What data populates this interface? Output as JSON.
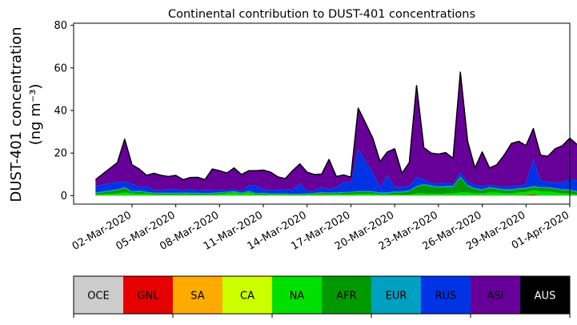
{
  "chart_data": {
    "type": "area",
    "title": "Continental contribution to DUST-401 concentrations",
    "ylabel_line1": "DUST-401 concentration",
    "ylabel_line2": "(ng m⁻³)",
    "xlabel": "",
    "ylim": [
      -4,
      81
    ],
    "xlim": [
      "2020-02-27",
      "2020-04-01"
    ],
    "yticks": [
      0,
      20,
      40,
      60,
      80
    ],
    "xticks": [
      "2020-03-02",
      "2020-03-05",
      "2020-03-08",
      "2020-03-11",
      "2020-03-14",
      "2020-03-17",
      "2020-03-20",
      "2020-03-23",
      "2020-03-26",
      "2020-03-29",
      "2020-04-01"
    ],
    "xtick_labels": [
      "02-Mar-2020",
      "05-Mar-2020",
      "08-Mar-2020",
      "11-Mar-2020",
      "14-Mar-2020",
      "17-Mar-2020",
      "20-Mar-2020",
      "23-Mar-2020",
      "26-Mar-2020",
      "29-Mar-2020",
      "01-Apr-2020"
    ],
    "x": [
      "2020-02-28 12:00",
      "2020-03-01 00:00",
      "2020-03-01 12:00",
      "2020-03-02 00:00",
      "2020-03-02 12:00",
      "2020-03-03 00:00",
      "2020-03-03 12:00",
      "2020-03-04 00:00",
      "2020-03-04 12:00",
      "2020-03-05 00:00",
      "2020-03-05 12:00",
      "2020-03-06 00:00",
      "2020-03-06 12:00",
      "2020-03-07 00:00",
      "2020-03-07 12:00",
      "2020-03-08 00:00",
      "2020-03-08 12:00",
      "2020-03-09 00:00",
      "2020-03-09 12:00",
      "2020-03-10 00:00",
      "2020-03-10 12:00",
      "2020-03-11 00:00",
      "2020-03-11 12:00",
      "2020-03-12 00:00",
      "2020-03-12 12:00",
      "2020-03-13 00:00",
      "2020-03-13 12:00",
      "2020-03-14 00:00",
      "2020-03-14 12:00",
      "2020-03-15 00:00",
      "2020-03-15 12:00",
      "2020-03-16 00:00",
      "2020-03-16 12:00",
      "2020-03-17 00:00",
      "2020-03-17 12:00",
      "2020-03-18 00:00",
      "2020-03-18 12:00",
      "2020-03-19 00:00",
      "2020-03-19 12:00",
      "2020-03-20 00:00",
      "2020-03-20 12:00",
      "2020-03-21 00:00",
      "2020-03-21 12:00",
      "2020-03-22 00:00",
      "2020-03-22 12:00",
      "2020-03-23 00:00",
      "2020-03-23 12:00",
      "2020-03-24 00:00",
      "2020-03-24 12:00",
      "2020-03-25 00:00",
      "2020-03-25 12:00",
      "2020-03-26 00:00",
      "2020-03-26 12:00",
      "2020-03-27 00:00",
      "2020-03-27 12:00",
      "2020-03-28 00:00",
      "2020-03-28 12:00",
      "2020-03-29 00:00",
      "2020-03-29 12:00",
      "2020-03-30 00:00",
      "2020-03-30 12:00",
      "2020-03-31 00:00",
      "2020-03-31 12:00",
      "2020-04-01 00:00",
      "2020-04-01 12:00"
    ],
    "series": [
      {
        "name": "OCE",
        "color": "#cccccc",
        "values": [
          0,
          0,
          0,
          0,
          0,
          0,
          0,
          0,
          0,
          0,
          0,
          0,
          0,
          0,
          0,
          0,
          0,
          0,
          0,
          0,
          0,
          0,
          0,
          0,
          0,
          0,
          0,
          0,
          0,
          0,
          0,
          0,
          0,
          0,
          0,
          0,
          0,
          0,
          0,
          0,
          0,
          0,
          0,
          0,
          0,
          0,
          0,
          0,
          0,
          0,
          0,
          0,
          0,
          0,
          0,
          0,
          0,
          0,
          0,
          0,
          0,
          0,
          0,
          0,
          0
        ]
      },
      {
        "name": "GNL",
        "color": "#e60000",
        "values": [
          0,
          0,
          0,
          0,
          0,
          0,
          0,
          0,
          0,
          0,
          0,
          0,
          0,
          0,
          0,
          0,
          0,
          0,
          0,
          0,
          0,
          0,
          0,
          0,
          0,
          0,
          0,
          0,
          0,
          0.3,
          0,
          0,
          0,
          0,
          0,
          0,
          0,
          0,
          0,
          0,
          0,
          0,
          0,
          0,
          0,
          0,
          0,
          0,
          0,
          0,
          0,
          0,
          0,
          0,
          0,
          0,
          0,
          0.2,
          0.5,
          0,
          0,
          0,
          0,
          0,
          0
        ]
      },
      {
        "name": "SA",
        "color": "#ffaa00",
        "values": [
          0,
          0,
          0,
          0,
          0,
          0,
          0,
          0,
          0,
          0,
          0,
          0,
          0,
          0,
          0,
          0,
          0,
          0,
          0,
          0,
          0,
          0,
          0,
          0,
          0,
          0,
          0,
          0,
          0,
          0,
          0,
          0,
          0,
          0,
          0,
          0,
          0,
          0,
          0,
          0,
          0,
          0,
          0,
          0,
          0,
          0,
          0,
          0,
          0,
          0,
          0,
          0,
          0,
          0,
          0,
          0,
          0,
          0,
          0,
          0,
          0,
          0,
          0,
          0,
          0
        ]
      },
      {
        "name": "CA",
        "color": "#ccff00",
        "values": [
          0,
          0,
          0,
          0,
          0,
          0,
          0,
          0,
          0,
          0,
          0,
          0,
          0,
          0,
          0,
          0,
          0,
          0,
          0,
          0,
          0,
          0,
          0,
          0,
          0,
          0,
          0,
          0,
          0,
          0,
          0,
          0,
          0,
          0,
          0,
          0,
          0,
          0,
          0,
          0,
          0,
          0,
          0,
          0,
          0,
          0,
          0,
          0,
          0,
          0,
          0,
          0,
          0,
          0,
          0,
          0,
          0,
          0,
          0,
          0,
          0,
          0,
          0,
          0,
          0
        ]
      },
      {
        "name": "NA",
        "color": "#00e000",
        "values": [
          0.5,
          1,
          1.5,
          1,
          0.8,
          1,
          0.6,
          0.5,
          0.5,
          0.5,
          0.6,
          0.5,
          0.5,
          0.4,
          0.5,
          0.8,
          1,
          1.5,
          0.8,
          1.5,
          0.5,
          0.5,
          0.4,
          0.4,
          0.4,
          0.3,
          0.3,
          0.4,
          0.5,
          0.5,
          0.6,
          0.6,
          0.7,
          0.7,
          0.8,
          0.8,
          0.9,
          0.5,
          0.5,
          0.5,
          0.5,
          0.5,
          1,
          1,
          0.8,
          0.8,
          1,
          1,
          1.5,
          1.5,
          1,
          1,
          1.5,
          1.5,
          1,
          1,
          1.5,
          1.5,
          2,
          2,
          2,
          1.5,
          1,
          1,
          0.5
        ]
      },
      {
        "name": "AFR",
        "color": "#009a00",
        "values": [
          0.5,
          1.5,
          2,
          0.5,
          1,
          0.5,
          0.5,
          0.5,
          0.5,
          0.5,
          0.5,
          0.5,
          0.5,
          0.5,
          0.5,
          0.5,
          0.5,
          0.3,
          0.3,
          0.4,
          0.4,
          0.5,
          0.4,
          0.4,
          0.3,
          0.3,
          0.3,
          0.4,
          0.5,
          0.5,
          0.6,
          0.6,
          0.7,
          0.8,
          1,
          1,
          0.8,
          0.5,
          0.5,
          1,
          1,
          1.5,
          3,
          4,
          3.5,
          3,
          3,
          3,
          7,
          3,
          2,
          1.5,
          2,
          1.5,
          1.5,
          1.5,
          1.5,
          1.5,
          1.5,
          1.5,
          1.5,
          1.5,
          1.5,
          1.5,
          1
        ]
      },
      {
        "name": "EUR",
        "color": "#00a0c0",
        "values": [
          0.5,
          0.5,
          0.5,
          0.5,
          0.5,
          0.3,
          0.3,
          0.3,
          0.3,
          0.3,
          0.3,
          0.3,
          0.3,
          0.3,
          0.3,
          0.3,
          0.3,
          0.3,
          0.3,
          0.3,
          0.3,
          0.3,
          0.3,
          0.3,
          0.3,
          0.3,
          0.3,
          0.3,
          0.3,
          0.3,
          0.3,
          0.3,
          0.3,
          0.3,
          0.3,
          0.3,
          0.3,
          0.5,
          0.5,
          0.5,
          0.5,
          0.5,
          0.5,
          0.5,
          0.5,
          0.5,
          0.5,
          0.5,
          0.5,
          0.5,
          0.5,
          0.5,
          0.5,
          0.5,
          0.5,
          0.5,
          0.5,
          0.5,
          0.5,
          0.5,
          0.5,
          0.5,
          0.5,
          0.5,
          0.5
        ]
      },
      {
        "name": "RUS",
        "color": "#0033e6",
        "values": [
          3,
          3.5,
          2.5,
          3.5,
          1.7,
          2.7,
          1.1,
          1.2,
          1.7,
          1.7,
          1.1,
          1.7,
          1.3,
          1.3,
          1.2,
          1.1,
          0.8,
          0.9,
          0.5,
          2.5,
          3.5,
          1.7,
          1.4,
          1.7,
          2,
          1.8,
          5,
          0.9,
          1.1,
          2.5,
          1.5,
          2.5,
          4.5,
          4.4,
          20,
          14,
          9,
          2.5,
          8,
          2,
          2,
          2,
          4.2,
          2,
          1.2,
          1.2,
          1.7,
          1,
          2,
          1.5,
          1.5,
          1.5,
          1,
          1,
          1,
          1.5,
          1,
          1.8,
          13,
          3,
          2.5,
          2.5,
          3.5,
          5,
          5
        ]
      },
      {
        "name": "ASI",
        "color": "#660099",
        "values": [
          3,
          9,
          20,
          9,
          8.5,
          5,
          8,
          7,
          6,
          6.5,
          5,
          5.5,
          6,
          5,
          10,
          9,
          8,
          10,
          8,
          7,
          7,
          9,
          8.5,
          6,
          5,
          9,
          9,
          9,
          7.5,
          6,
          14,
          5,
          3.5,
          2.5,
          19,
          18,
          16,
          12,
          11,
          18,
          6.5,
          11,
          43,
          15,
          14,
          14,
          14,
          12,
          47,
          19,
          8,
          16,
          8,
          10,
          15,
          20,
          21,
          18,
          14,
          12,
          12,
          16,
          17,
          19,
          17
        ]
      },
      {
        "name": "AUS",
        "color": "#000000",
        "values": [
          0,
          0,
          0,
          0,
          0,
          0,
          0,
          0,
          0,
          0,
          0,
          0,
          0,
          0,
          0,
          0,
          0,
          0,
          0,
          0,
          0,
          0,
          0,
          0,
          0,
          0,
          0,
          0,
          0,
          0,
          0,
          0,
          0,
          0,
          0,
          0,
          0,
          0,
          0,
          0,
          0,
          0,
          0,
          0,
          0,
          0,
          0,
          0,
          0,
          0,
          0,
          0,
          0,
          0,
          0,
          0,
          0,
          0,
          0,
          0,
          0,
          0,
          0,
          0,
          0
        ]
      }
    ],
    "stacked": true,
    "grid": false,
    "legend": "colorbar-below"
  }
}
